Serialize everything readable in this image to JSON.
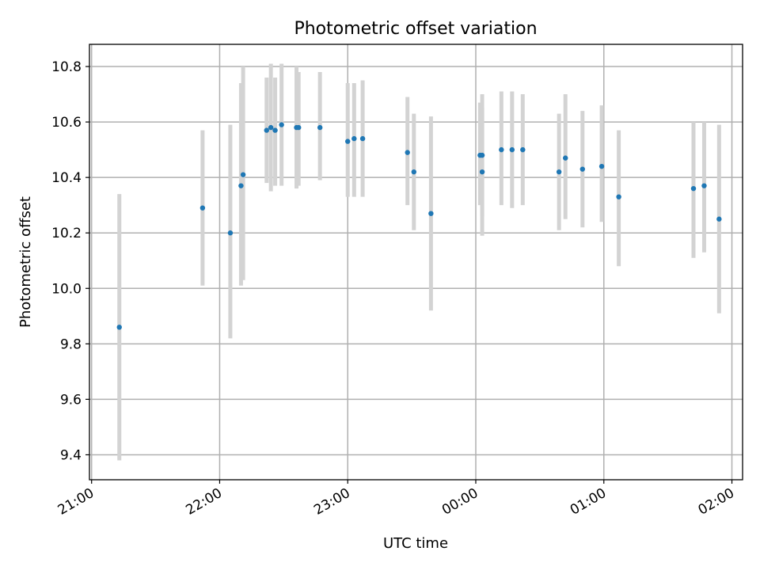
{
  "chart_data": {
    "type": "scatter",
    "title": "Photometric offset variation",
    "xlabel": "UTC time",
    "ylabel": "Photometric offset",
    "x_type": "time",
    "x_unit": "UTC",
    "xlim": [
      "20:59",
      "02:05"
    ],
    "ylim": [
      9.31,
      10.88
    ],
    "grid": true,
    "x_ticks": [
      "21:00",
      "22:00",
      "23:00",
      "00:00",
      "01:00",
      "02:00"
    ],
    "x_ticks_minutes": [
      1260,
      1320,
      1380,
      1440,
      1500,
      1560
    ],
    "y_ticks": [
      9.4,
      9.6,
      9.8,
      10.0,
      10.2,
      10.4,
      10.6,
      10.8
    ],
    "colors": {
      "point": "#1f77b4",
      "errorbar": "#d3d3d3",
      "grid": "#b0b0b0"
    },
    "series": [
      {
        "points": [
          {
            "t": "21:13",
            "y": 9.86,
            "lo": 9.38,
            "hi": 10.34
          },
          {
            "t": "21:52",
            "y": 10.29,
            "lo": 10.01,
            "hi": 10.57
          },
          {
            "t": "22:05",
            "y": 10.2,
            "lo": 9.82,
            "hi": 10.59
          },
          {
            "t": "22:10",
            "y": 10.37,
            "lo": 10.01,
            "hi": 10.74
          },
          {
            "t": "22:11",
            "y": 10.41,
            "lo": 10.03,
            "hi": 10.8
          },
          {
            "t": "22:22",
            "y": 10.57,
            "lo": 10.38,
            "hi": 10.76
          },
          {
            "t": "22:24",
            "y": 10.58,
            "lo": 10.35,
            "hi": 10.81
          },
          {
            "t": "22:26",
            "y": 10.57,
            "lo": 10.37,
            "hi": 10.76
          },
          {
            "t": "22:29",
            "y": 10.59,
            "lo": 10.37,
            "hi": 10.81
          },
          {
            "t": "22:36",
            "y": 10.58,
            "lo": 10.36,
            "hi": 10.8
          },
          {
            "t": "22:37",
            "y": 10.58,
            "lo": 10.37,
            "hi": 10.78
          },
          {
            "t": "22:47",
            "y": 10.58,
            "lo": 10.39,
            "hi": 10.78
          },
          {
            "t": "23:00",
            "y": 10.53,
            "lo": 10.33,
            "hi": 10.74
          },
          {
            "t": "23:03",
            "y": 10.54,
            "lo": 10.33,
            "hi": 10.74
          },
          {
            "t": "23:07",
            "y": 10.54,
            "lo": 10.33,
            "hi": 10.75
          },
          {
            "t": "23:28",
            "y": 10.49,
            "lo": 10.3,
            "hi": 10.69
          },
          {
            "t": "23:31",
            "y": 10.42,
            "lo": 10.21,
            "hi": 10.63
          },
          {
            "t": "23:39",
            "y": 10.27,
            "lo": 9.92,
            "hi": 10.62
          },
          {
            "t": "00:02",
            "y": 10.48,
            "lo": 10.3,
            "hi": 10.67
          },
          {
            "t": "00:03",
            "y": 10.48,
            "lo": 10.26,
            "hi": 10.7
          },
          {
            "t": "00:03",
            "y": 10.42,
            "lo": 10.19,
            "hi": 10.65
          },
          {
            "t": "00:12",
            "y": 10.5,
            "lo": 10.3,
            "hi": 10.71
          },
          {
            "t": "00:17",
            "y": 10.5,
            "lo": 10.29,
            "hi": 10.71
          },
          {
            "t": "00:22",
            "y": 10.5,
            "lo": 10.3,
            "hi": 10.7
          },
          {
            "t": "00:39",
            "y": 10.42,
            "lo": 10.21,
            "hi": 10.63
          },
          {
            "t": "00:42",
            "y": 10.47,
            "lo": 10.25,
            "hi": 10.7
          },
          {
            "t": "00:50",
            "y": 10.43,
            "lo": 10.22,
            "hi": 10.64
          },
          {
            "t": "00:59",
            "y": 10.44,
            "lo": 10.24,
            "hi": 10.66
          },
          {
            "t": "01:07",
            "y": 10.33,
            "lo": 10.08,
            "hi": 10.57
          },
          {
            "t": "01:42",
            "y": 10.36,
            "lo": 10.11,
            "hi": 10.6
          },
          {
            "t": "01:47",
            "y": 10.37,
            "lo": 10.13,
            "hi": 10.6
          },
          {
            "t": "01:54",
            "y": 10.25,
            "lo": 9.91,
            "hi": 10.59
          }
        ]
      }
    ]
  }
}
